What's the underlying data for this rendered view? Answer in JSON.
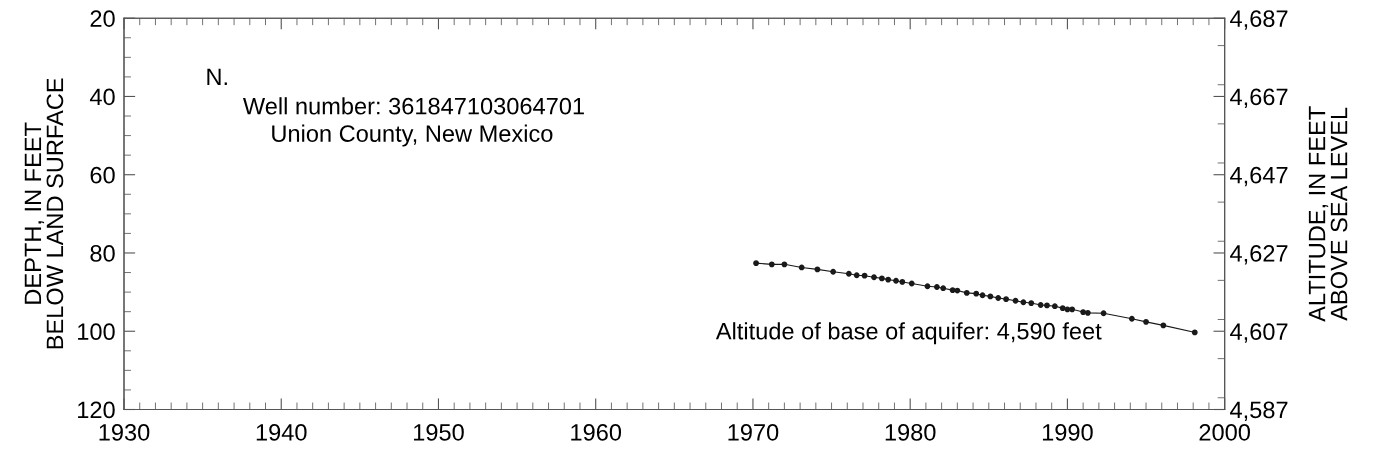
{
  "chart_data": {
    "type": "line",
    "ylabel": "DEPTH, IN FEET\nBELOW LAND SURFACE",
    "y2label": "ALTITUDE, IN FEET\nABOVE SEA LEVEL",
    "annotations": [
      "N.",
      "Well number: 361847103064701",
      "Union County, New Mexico",
      "Altitude of base of aquifer: 4,590 feet"
    ],
    "xlim": [
      1930,
      2000
    ],
    "xticks": [
      1930,
      1940,
      1950,
      1960,
      1970,
      1980,
      1990,
      2000
    ],
    "ylim": [
      120,
      20
    ],
    "yticks": [
      20,
      40,
      60,
      80,
      100,
      120
    ],
    "y2lim": [
      4587,
      4687
    ],
    "y2ticks": [
      {
        "value": 4587,
        "label": "4,587"
      },
      {
        "value": 4607,
        "label": "4,607"
      },
      {
        "value": 4627,
        "label": "4,627"
      },
      {
        "value": 4647,
        "label": "4,647"
      },
      {
        "value": 4667,
        "label": "4,667"
      },
      {
        "value": 4687,
        "label": "4,687"
      }
    ],
    "marker": "circle",
    "line_style": "solid",
    "series": [
      {
        "color": "#1a1a1a",
        "x": [
          1970.2,
          1971.2,
          1972.0,
          1973.1,
          1974.1,
          1975.1,
          1976.1,
          1976.6,
          1977.1,
          1977.7,
          1978.2,
          1978.6,
          1979.1,
          1979.5,
          1980.1,
          1981.1,
          1981.7,
          1982.1,
          1982.7,
          1983.0,
          1983.6,
          1984.2,
          1984.6,
          1985.1,
          1985.6,
          1986.1,
          1986.7,
          1987.2,
          1987.7,
          1988.3,
          1988.7,
          1989.2,
          1989.7,
          1990.0,
          1990.3,
          1991.0,
          1991.3,
          1992.3,
          1994.1,
          1995.0,
          1996.1,
          1998.1
        ],
        "values": [
          82.6,
          82.9,
          82.9,
          83.7,
          84.2,
          84.8,
          85.3,
          85.7,
          85.8,
          86.2,
          86.5,
          86.8,
          87.1,
          87.4,
          87.8,
          88.5,
          88.7,
          89.0,
          89.5,
          89.6,
          90.2,
          90.4,
          90.8,
          91.1,
          91.5,
          91.8,
          92.2,
          92.6,
          92.8,
          93.3,
          93.4,
          93.6,
          94.1,
          94.4,
          94.4,
          95.1,
          95.3,
          95.4,
          96.8,
          97.6,
          98.5,
          100.3
        ]
      }
    ]
  }
}
